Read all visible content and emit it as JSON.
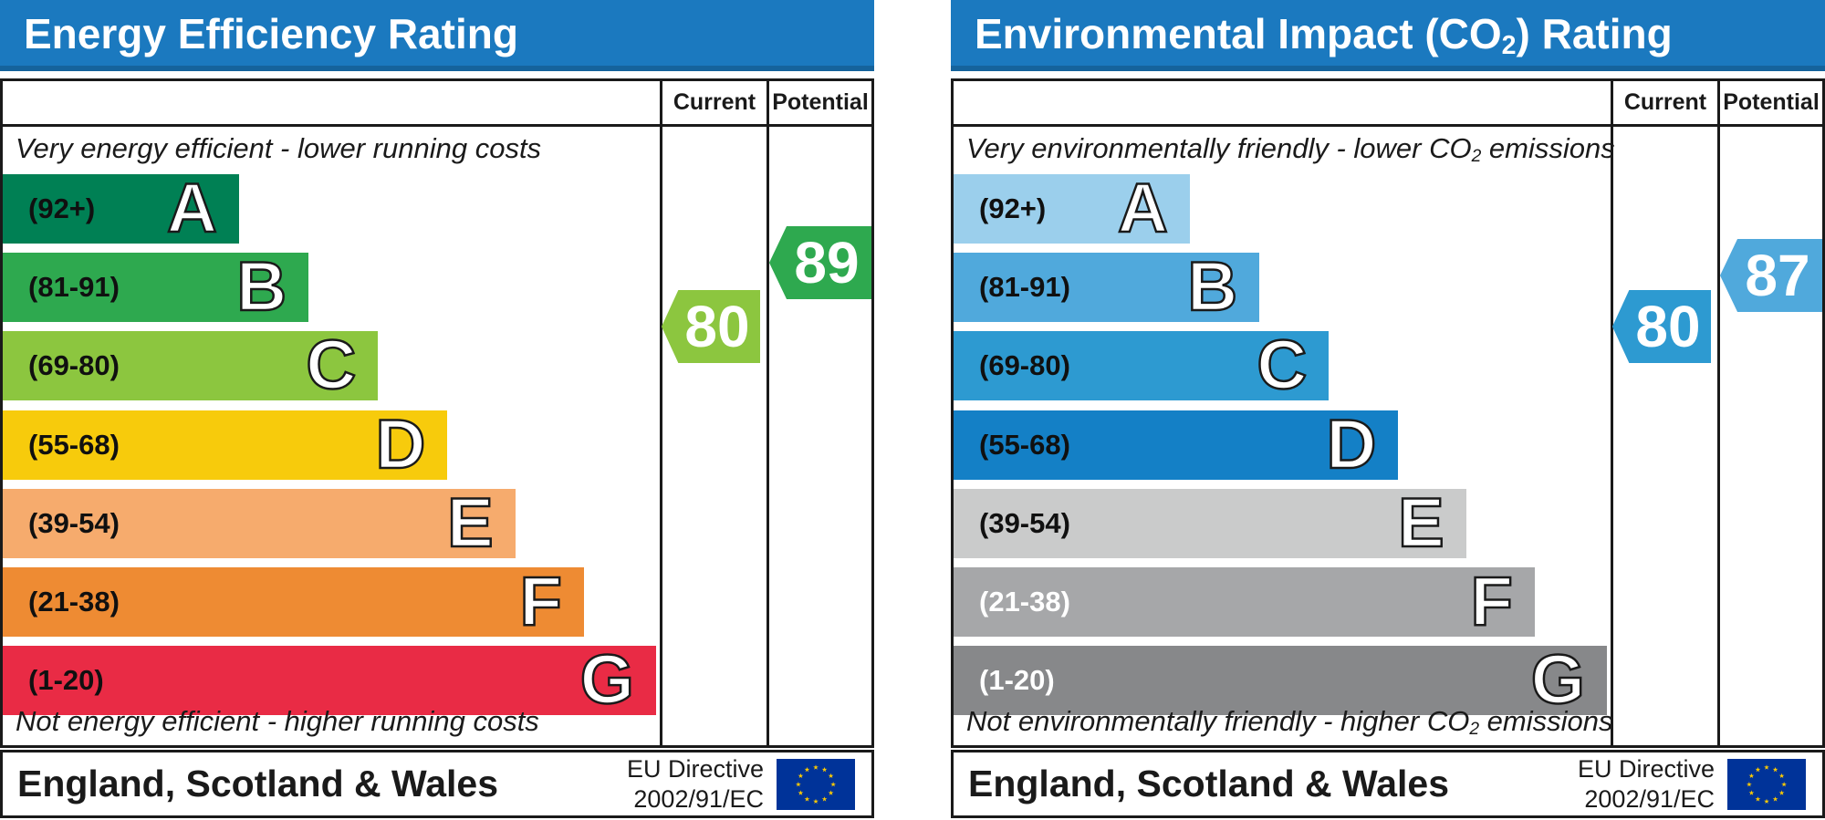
{
  "chart_data": [
    {
      "type": "bar",
      "title": "Energy Efficiency Rating",
      "categories": [
        "A",
        "B",
        "C",
        "D",
        "E",
        "F",
        "G"
      ],
      "band_ranges": [
        "92+",
        "81-91",
        "69-80",
        "55-68",
        "39-54",
        "21-38",
        "1-20"
      ],
      "band_widths_pct": [
        27.2,
        35.2,
        43.2,
        51.2,
        59.0,
        66.9,
        75.2
      ],
      "current": 80,
      "potential": 89,
      "current_band": "C",
      "potential_band": "B",
      "top_caption": "Very energy efficient - lower running costs",
      "bottom_caption": "Not energy efficient - higher running costs",
      "columns": [
        "Current",
        "Potential"
      ],
      "region": "England, Scotland & Wales",
      "directive": "EU Directive 2002/91/EC"
    },
    {
      "type": "bar",
      "title": "Environmental Impact (CO2) Rating",
      "categories": [
        "A",
        "B",
        "C",
        "D",
        "E",
        "F",
        "G"
      ],
      "band_ranges": [
        "92+",
        "81-91",
        "69-80",
        "55-68",
        "39-54",
        "21-38",
        "1-20"
      ],
      "band_widths_pct": [
        27.2,
        35.2,
        43.2,
        51.2,
        59.0,
        66.9,
        75.2
      ],
      "current": 80,
      "potential": 87,
      "current_band": "C",
      "potential_band": "B",
      "top_caption": "Very environmentally friendly - lower CO2 emissions",
      "bottom_caption": "Not environmentally friendly - higher CO2 emissions",
      "columns": [
        "Current",
        "Potential"
      ],
      "region": "England, Scotland & Wales",
      "directive": "EU Directive 2002/91/EC"
    }
  ],
  "charts": [
    {
      "title_pre": "Energy Efficiency Rating",
      "title_sub": "",
      "title_post": "",
      "header_color": "#1b79bf",
      "col_current": "Current",
      "col_potential": "Potential",
      "top_caption_pre": "Very energy efficient - lower running costs",
      "top_caption_sub": "",
      "top_caption_post": "",
      "bottom_caption_pre": "Not energy efficient - higher running costs",
      "bottom_caption_sub": "",
      "bottom_caption_post": "",
      "bands": [
        {
          "letter": "A",
          "range": "(92+)",
          "color": "#008054",
          "width_pct": 27.2,
          "label_color": "#101010"
        },
        {
          "letter": "B",
          "range": "(81-91)",
          "color": "#2ea94f",
          "width_pct": 35.2,
          "label_color": "#101010"
        },
        {
          "letter": "C",
          "range": "(69-80)",
          "color": "#8cc63f",
          "width_pct": 43.2,
          "label_color": "#101010"
        },
        {
          "letter": "D",
          "range": "(55-68)",
          "color": "#f7cb0c",
          "width_pct": 51.2,
          "label_color": "#101010"
        },
        {
          "letter": "E",
          "range": "(39-54)",
          "color": "#f6ab6d",
          "width_pct": 59.0,
          "label_color": "#101010"
        },
        {
          "letter": "F",
          "range": "(21-38)",
          "color": "#ee8b33",
          "width_pct": 66.9,
          "label_color": "#101010"
        },
        {
          "letter": "G",
          "range": "(1-20)",
          "color": "#e92b45",
          "width_pct": 75.2,
          "label_color": "#101010"
        }
      ],
      "current": {
        "label": "80",
        "color": "#8cc63f"
      },
      "potential": {
        "label": "89",
        "color": "#2ea94f"
      },
      "footer": {
        "region": "England, Scotland & Wales",
        "directive_line1": "EU Directive",
        "directive_line2": "2002/91/EC",
        "flag_blue": "#003399",
        "flag_star": "#ffcc00"
      }
    },
    {
      "title_pre": "Environmental Impact (CO",
      "title_sub": "2",
      "title_post": ") Rating",
      "header_color": "#1b79bf",
      "col_current": "Current",
      "col_potential": "Potential",
      "top_caption_pre": "Very environmentally friendly - lower CO",
      "top_caption_sub": "2",
      "top_caption_post": " emissions",
      "bottom_caption_pre": "Not environmentally friendly - higher CO",
      "bottom_caption_sub": "2",
      "bottom_caption_post": " emissions",
      "bands": [
        {
          "letter": "A",
          "range": "(92+)",
          "color": "#9bcfec",
          "width_pct": 27.2,
          "label_color": "#101010"
        },
        {
          "letter": "B",
          "range": "(81-91)",
          "color": "#50a9dc",
          "width_pct": 35.2,
          "label_color": "#101010"
        },
        {
          "letter": "C",
          "range": "(69-80)",
          "color": "#2d9ad1",
          "width_pct": 43.2,
          "label_color": "#101010"
        },
        {
          "letter": "D",
          "range": "(55-68)",
          "color": "#1480c6",
          "width_pct": 51.2,
          "label_color": "#101010"
        },
        {
          "letter": "E",
          "range": "(39-54)",
          "color": "#cacbcb",
          "width_pct": 59.0,
          "label_color": "#101010"
        },
        {
          "letter": "F",
          "range": "(21-38)",
          "color": "#a6a7a9",
          "width_pct": 66.9,
          "label_color": "#ffffff"
        },
        {
          "letter": "G",
          "range": "(1-20)",
          "color": "#87888a",
          "width_pct": 75.2,
          "label_color": "#ffffff"
        }
      ],
      "current": {
        "label": "80",
        "color": "#2d9ad1"
      },
      "potential": {
        "label": "87",
        "color": "#50a9dc"
      },
      "footer": {
        "region": "England, Scotland & Wales",
        "directive_line1": "EU Directive",
        "directive_line2": "2002/91/EC",
        "flag_blue": "#003399",
        "flag_star": "#ffcc00"
      }
    }
  ]
}
